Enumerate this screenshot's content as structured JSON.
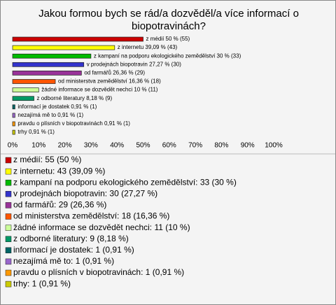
{
  "chart_data": {
    "type": "bar",
    "orientation": "horizontal",
    "title": "Jakou formou bych se rád/a dozvěděl/a více informací o biopotravinách?",
    "categories": [
      "z médií",
      "z internetu",
      "z kampaní na podporu ekologického zemědělství",
      "v prodejnách biopotravin",
      "od farmářů",
      "od ministerstva zemědělství",
      "žádné informace se dozvědět nechci",
      "z odborné literatury",
      "informací je dostatek",
      "nezajímá mě to",
      "pravdu o plísních v biopotravinách",
      "trhy"
    ],
    "values": [
      50,
      39.09,
      30,
      27.27,
      26.36,
      16.36,
      10,
      8.18,
      0.91,
      0.91,
      0.91,
      0.91
    ],
    "value_labels": [
      "z médií 50 % (55)",
      "z internetu 39,09 % (43)",
      "z kampaní na podporu ekologického zemědělství 30 % (33)",
      "v prodejnách biopotravin 27,27 % (30)",
      "od farmářů 26,36 % (29)",
      "od ministerstva zemědělství 16,36 % (18)",
      "žádné informace se dozvědět nechci 10 % (11)",
      "z odborné literatury 8,18 % (9)",
      "informací je dostatek 0,91 % (1)",
      "nezajímá mě to 0,91 % (1)",
      "pravdu o plísních v biopotravinách 0,91 % (1)",
      "trhy 0,91 % (1)"
    ],
    "legend_labels": [
      "z médií: 55 (50 %)",
      "z internetu: 43 (39,09 %)",
      "z kampaní na podporu ekologického zemědělství: 33 (30 %)",
      "v prodejnách biopotravin: 30 (27,27 %)",
      "od farmářů: 29 (26,36 %)",
      "od ministerstva zemědělství: 18 (16,36 %)",
      "žádné informace se dozvědět nechci: 11 (10 %)",
      "z odborné literatury: 9 (8,18 %)",
      "informací je dostatek: 1 (0,91 %)",
      "nezajímá mě to: 1 (0,91 %)",
      "pravdu o plísních v biopotravinách: 1 (0,91 %)",
      "trhy: 1 (0,91 %)"
    ],
    "colors": [
      "#cc0000",
      "#ffff00",
      "#00bb00",
      "#3333cc",
      "#993399",
      "#ff5500",
      "#ccff99",
      "#009966",
      "#006666",
      "#9966cc",
      "#ff9900",
      "#cccc00"
    ],
    "xlim": [
      0,
      100
    ],
    "xticks": [
      {
        "value": 0,
        "label": "0%"
      },
      {
        "value": 10,
        "label": "10%"
      },
      {
        "value": 20,
        "label": "20%"
      },
      {
        "value": 30,
        "label": "30%"
      },
      {
        "value": 40,
        "label": "40%"
      },
      {
        "value": 50,
        "label": "50%"
      },
      {
        "value": 60,
        "label": "60%"
      },
      {
        "value": 70,
        "label": "70%"
      },
      {
        "value": 80,
        "label": "80%"
      },
      {
        "value": 90,
        "label": "90%"
      },
      {
        "value": 100,
        "label": "100%"
      }
    ]
  }
}
